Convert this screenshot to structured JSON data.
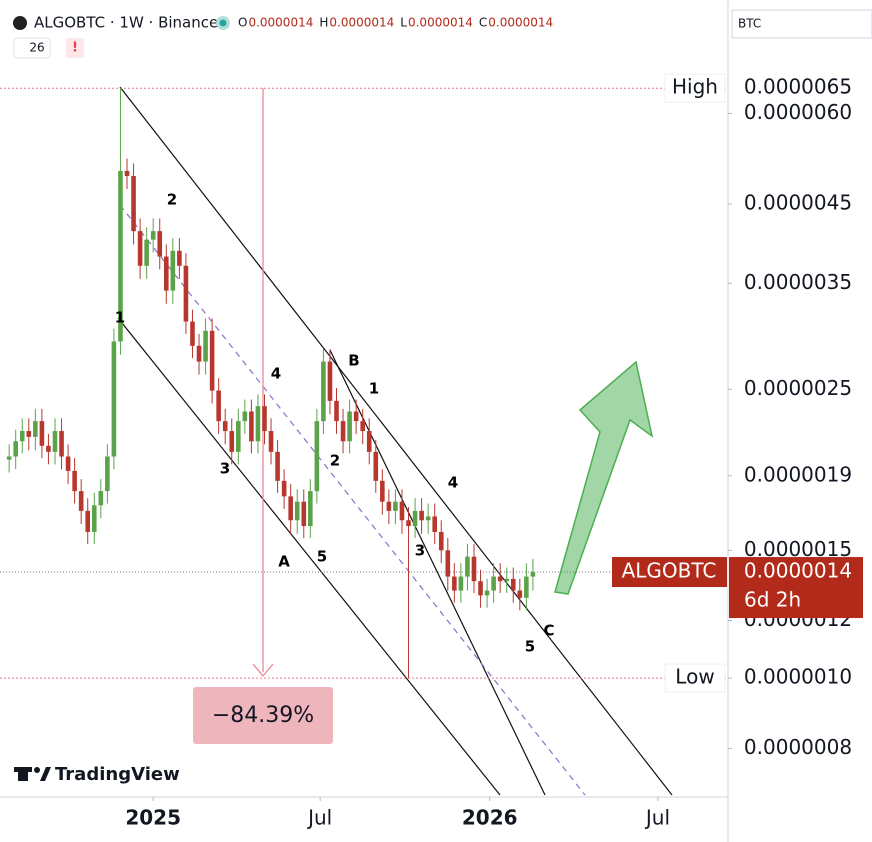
{
  "header": {
    "symbol": "ALGOBTC · 1W · Binance",
    "ohlc": [
      {
        "key": "O",
        "value": "0.0000014"
      },
      {
        "key": "H",
        "value": "0.0000014"
      },
      {
        "key": "L",
        "value": "0.0000014"
      },
      {
        "key": "C",
        "value": "0.0000014"
      }
    ],
    "indicator_count": "26",
    "alert": "!",
    "search": "BTC",
    "watermark": "TradingView"
  },
  "chart_data": {
    "type": "candlestick",
    "log_scale": true,
    "up_color": "#5aa34a",
    "down_color": "#b7372f",
    "ylim": [
      6.9e-07,
      8.6e-06
    ],
    "yticks": [
      {
        "value": 8e-07,
        "label": "0.0000008"
      },
      {
        "value": 1e-06,
        "label": "0.0000010"
      },
      {
        "value": 1.2e-06,
        "label": "0.0000012"
      },
      {
        "value": 1.5e-06,
        "label": "0.0000015"
      },
      {
        "value": 1.9e-06,
        "label": "0.0000019"
      },
      {
        "value": 2.5e-06,
        "label": "0.0000025"
      },
      {
        "value": 3.5e-06,
        "label": "0.0000035"
      },
      {
        "value": 4.5e-06,
        "label": "0.0000045"
      },
      {
        "value": 6e-06,
        "label": "0.0000060"
      }
    ],
    "xlim": [
      -1.4,
      109.8
    ],
    "xticks": [
      {
        "value": 22.0,
        "label": "2025"
      },
      {
        "value": 47.5,
        "label": "Jul"
      },
      {
        "value": 73.4,
        "label": "2026"
      },
      {
        "value": 99.1,
        "label": "Jul"
      }
    ],
    "open": [
      2e-06,
      2.02e-06,
      2.12e-06,
      2.19e-06,
      2.15e-06,
      2.26e-06,
      2.09e-06,
      2.05e-06,
      2.19e-06,
      2.02e-06,
      1.93e-06,
      1.81e-06,
      1.7e-06,
      1.59e-06,
      1.73e-06,
      1.81e-06,
      2.02e-06,
      2.91e-06,
      5e-06,
      4.92e-06,
      4.13e-06,
      3.7e-06,
      4.02e-06,
      4.13e-06,
      3.81e-06,
      3.42e-06,
      3.88e-06,
      3.7e-06,
      3.1e-06,
      2.87e-06,
      2.73e-06,
      3.01e-06,
      2.49e-06,
      2.26e-06,
      2.19e-06,
      2.05e-06,
      2.26e-06,
      2.33e-06,
      2.12e-06,
      2.37e-06,
      2.19e-06,
      2.05e-06,
      1.87e-06,
      1.78e-06,
      1.65e-06,
      1.75e-06,
      1.62e-06,
      1.81e-06,
      2.26e-06,
      2.73e-06,
      2.41e-06,
      2.26e-06,
      2.12e-06,
      2.33e-06,
      2.26e-06,
      2.19e-06,
      2.05e-06,
      1.87e-06,
      1.75e-06,
      1.7e-06,
      1.75e-06,
      1.65e-06,
      1.62e-06,
      1.7e-06,
      1.65e-06,
      1.67e-06,
      1.59e-06,
      1.5e-06,
      1.38e-06,
      1.32e-06,
      1.38e-06,
      1.47e-06,
      1.36e-06,
      1.3e-06,
      1.32e-06,
      1.38e-06,
      1.36e-06,
      1.37e-06,
      1.32e-06,
      1.29e-06,
      1.38e-06
    ],
    "high": [
      2.1e-06,
      2.2e-06,
      2.28e-06,
      2.28e-06,
      2.35e-06,
      2.35e-06,
      2.17e-06,
      2.28e-06,
      2.28e-06,
      2.1e-06,
      2.01e-06,
      1.88e-06,
      1.77e-06,
      1.8e-06,
      1.88e-06,
      2.1e-06,
      3.03e-06,
      6.5e-06,
      5.2e-06,
      5.12e-06,
      4.3e-06,
      4.18e-06,
      4.3e-06,
      4.3e-06,
      3.96e-06,
      4.04e-06,
      4.04e-06,
      3.85e-06,
      3.22e-06,
      2.98e-06,
      3.13e-06,
      3.13e-06,
      2.59e-06,
      2.35e-06,
      2.28e-06,
      2.35e-06,
      2.42e-06,
      2.42e-06,
      2.46e-06,
      2.46e-06,
      2.28e-06,
      2.13e-06,
      1.94e-06,
      1.85e-06,
      1.82e-06,
      1.82e-06,
      1.88e-06,
      2.35e-06,
      2.84e-06,
      2.84e-06,
      2.51e-06,
      2.35e-06,
      2.42e-06,
      2.42e-06,
      2.35e-06,
      2.28e-06,
      2.13e-06,
      1.94e-06,
      1.82e-06,
      1.82e-06,
      1.82e-06,
      1.72e-06,
      1.77e-06,
      1.77e-06,
      1.74e-06,
      1.74e-06,
      1.65e-06,
      1.56e-06,
      1.44e-06,
      1.44e-06,
      1.53e-06,
      1.53e-06,
      1.41e-06,
      1.37e-06,
      1.44e-06,
      1.44e-06,
      1.42e-06,
      1.42e-06,
      1.37e-06,
      1.44e-06,
      1.46e-06
    ],
    "low": [
      1.92e-06,
      1.94e-06,
      2.04e-06,
      2.06e-06,
      2.06e-06,
      2.01e-06,
      1.97e-06,
      1.97e-06,
      1.94e-06,
      1.85e-06,
      1.74e-06,
      1.63e-06,
      1.53e-06,
      1.53e-06,
      1.66e-06,
      1.74e-06,
      1.94e-06,
      2.79e-06,
      4.72e-06,
      3.96e-06,
      3.55e-06,
      3.55e-06,
      3.86e-06,
      3.66e-06,
      3.28e-06,
      3.28e-06,
      3.55e-06,
      2.98e-06,
      2.76e-06,
      2.62e-06,
      2.62e-06,
      2.39e-06,
      2.17e-06,
      2.1e-06,
      1.97e-06,
      1.97e-06,
      2.17e-06,
      2.04e-06,
      2.04e-06,
      2.1e-06,
      1.97e-06,
      1.8e-06,
      1.71e-06,
      1.58e-06,
      1.58e-06,
      1.56e-06,
      1.56e-06,
      1.74e-06,
      2.17e-06,
      2.31e-06,
      2.17e-06,
      2.04e-06,
      2.04e-06,
      2.17e-06,
      2.1e-06,
      1.97e-06,
      1.8e-06,
      1.68e-06,
      1.63e-06,
      1.63e-06,
      1.58e-06,
      1e-06,
      1.56e-06,
      1.58e-06,
      1.58e-06,
      1.53e-06,
      1.44e-06,
      1.32e-06,
      1.27e-06,
      1.27e-06,
      1.32e-06,
      1.31e-06,
      1.25e-06,
      1.25e-06,
      1.27e-06,
      1.31e-06,
      1.31e-06,
      1.27e-06,
      1.24e-06,
      1.24e-06,
      1.32e-06
    ],
    "close": [
      2.02e-06,
      2.12e-06,
      2.19e-06,
      2.15e-06,
      2.26e-06,
      2.09e-06,
      2.05e-06,
      2.19e-06,
      2.02e-06,
      1.93e-06,
      1.81e-06,
      1.7e-06,
      1.59e-06,
      1.73e-06,
      1.81e-06,
      2.02e-06,
      2.91e-06,
      5e-06,
      4.92e-06,
      4.13e-06,
      3.7e-06,
      4.02e-06,
      4.13e-06,
      3.81e-06,
      3.42e-06,
      3.88e-06,
      3.7e-06,
      3.1e-06,
      2.87e-06,
      2.73e-06,
      3.01e-06,
      2.49e-06,
      2.26e-06,
      2.19e-06,
      2.05e-06,
      2.26e-06,
      2.33e-06,
      2.12e-06,
      2.37e-06,
      2.19e-06,
      2.05e-06,
      1.87e-06,
      1.78e-06,
      1.65e-06,
      1.75e-06,
      1.62e-06,
      1.81e-06,
      2.26e-06,
      2.73e-06,
      2.41e-06,
      2.26e-06,
      2.12e-06,
      2.33e-06,
      2.26e-06,
      2.19e-06,
      2.05e-06,
      1.87e-06,
      1.75e-06,
      1.7e-06,
      1.75e-06,
      1.65e-06,
      1.62e-06,
      1.7e-06,
      1.65e-06,
      1.67e-06,
      1.59e-06,
      1.5e-06,
      1.38e-06,
      1.32e-06,
      1.38e-06,
      1.47e-06,
      1.36e-06,
      1.3e-06,
      1.32e-06,
      1.38e-06,
      1.36e-06,
      1.37e-06,
      1.32e-06,
      1.29e-06,
      1.38e-06,
      1.4e-06
    ],
    "high_line": {
      "label": "High",
      "value": 6.5e-06,
      "value_label": "0.0000065"
    },
    "low_line": {
      "label": "Low",
      "value": 1e-06,
      "value_label": "0.0000010"
    },
    "last_price": {
      "symbol": "ALGOBTC",
      "value": 1.4e-06,
      "value_label": "0.0000014",
      "countdown": "6d 2h"
    },
    "measure": "−84.39%",
    "wave_labels": [
      "1",
      "2",
      "3",
      "4",
      "5",
      "A",
      "B",
      "1",
      "2",
      "3",
      "4",
      "5",
      "C"
    ]
  }
}
